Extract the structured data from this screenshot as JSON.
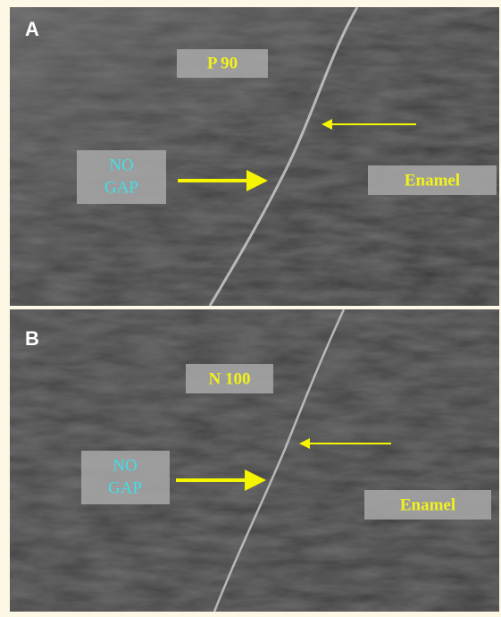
{
  "panels": [
    {
      "label": "A",
      "material": "P 90",
      "gap_lines": [
        "NO",
        "GAP"
      ],
      "region": "Enamel"
    },
    {
      "label": "B",
      "material": "N 100",
      "gap_lines": [
        "NO",
        "GAP"
      ],
      "region": "Enamel"
    }
  ]
}
